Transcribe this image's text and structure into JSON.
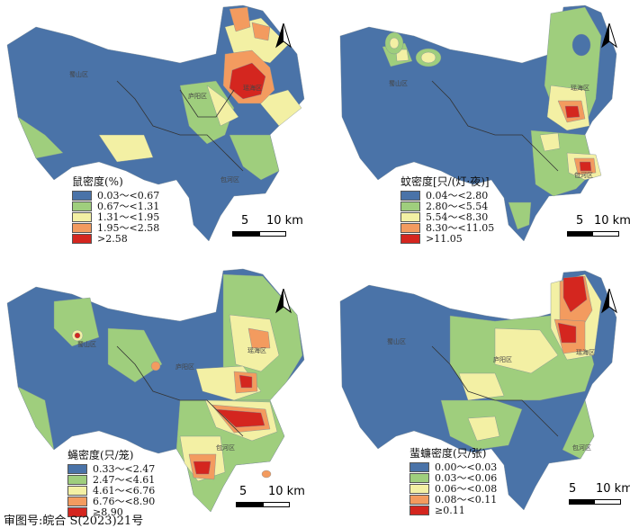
{
  "colors": {
    "c1": "#4a73a8",
    "c2": "#9fce7d",
    "c3": "#f3f0a4",
    "c4": "#f39b5f",
    "c5": "#d4261f",
    "background": "#ffffff"
  },
  "panels": [
    {
      "legend_title": "鼠密度(%)",
      "classes": [
        "0.03～<0.67",
        "0.67～<1.31",
        "1.31～<1.95",
        "1.95～<2.58",
        ">2.58"
      ],
      "districts": [
        "蜀山区",
        "庐阳区",
        "瑶海区",
        "包河区"
      ]
    },
    {
      "legend_title": "蚊密度[只/(灯·夜)]",
      "classes": [
        "0.04～<2.80",
        "2.80～<5.54",
        "5.54～<8.30",
        "8.30～<11.05",
        ">11.05"
      ],
      "districts": [
        "蜀山区",
        "瑶海区",
        "包河区"
      ]
    },
    {
      "legend_title": "蝇密度(只/笼)",
      "classes": [
        "0.33～<2.47",
        "2.47～<4.61",
        "4.61～<6.76",
        "6.76～<8.90",
        "≥8.90"
      ],
      "districts": [
        "蜀山区",
        "庐阳区",
        "瑶海区",
        "包河区"
      ]
    },
    {
      "legend_title": "蜚蠊密度(只/张)",
      "classes": [
        "0.00～<0.03",
        "0.03～<0.06",
        "0.06～<0.08",
        "0.08～<0.11",
        "≥0.11"
      ],
      "districts": [
        "蜀山区",
        "庐阳区",
        "瑶海区",
        "包河区"
      ]
    }
  ],
  "scale_bar": {
    "label_5": "5",
    "label_10": "10 km"
  },
  "north_arrow": {
    "icon": "north-arrow-icon",
    "letter": "N"
  },
  "footer": {
    "approval": "审图号:皖合 S(2023)21号"
  }
}
